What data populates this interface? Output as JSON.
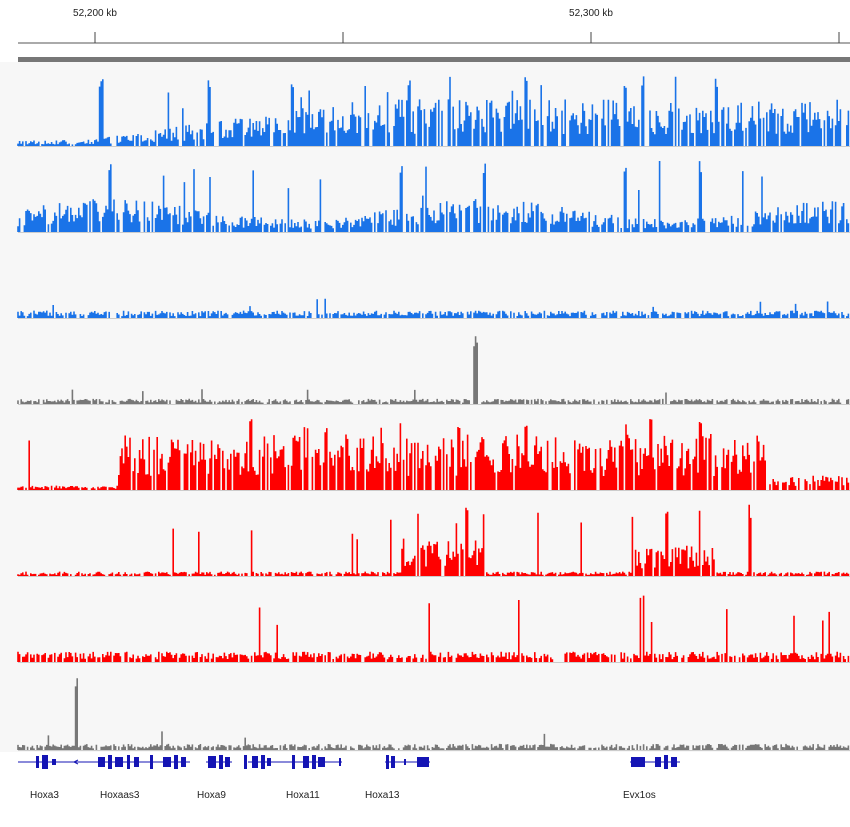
{
  "ruler": {
    "labels": [
      {
        "id": "52200",
        "text": "52,200 kb"
      },
      {
        "id": "52300",
        "text": "52,300 kb"
      }
    ]
  },
  "colors": {
    "blue": "#1a73e8",
    "red": "#ff0000",
    "gray": "#777777",
    "gene": "#1414b4",
    "axis": "#555555",
    "background": "#f7f7f7"
  },
  "tracks": [
    {
      "id": "track-1",
      "color": "blue"
    },
    {
      "id": "track-2",
      "color": "blue"
    },
    {
      "id": "track-3",
      "color": "blue"
    },
    {
      "id": "track-4",
      "color": "gray"
    },
    {
      "id": "track-5",
      "color": "red"
    },
    {
      "id": "track-6",
      "color": "red"
    },
    {
      "id": "track-7",
      "color": "red"
    },
    {
      "id": "track-8",
      "color": "gray"
    }
  ],
  "genes": [
    {
      "id": "hoxa3",
      "name": "Hoxa3"
    },
    {
      "id": "hoxaas3",
      "name": "Hoxaas3"
    },
    {
      "id": "hoxa9",
      "name": "Hoxa9"
    },
    {
      "id": "hoxa11",
      "name": "Hoxa11"
    },
    {
      "id": "hoxa13",
      "name": "Hoxa13"
    },
    {
      "id": "evx1os",
      "name": "Evx1os"
    }
  ]
}
